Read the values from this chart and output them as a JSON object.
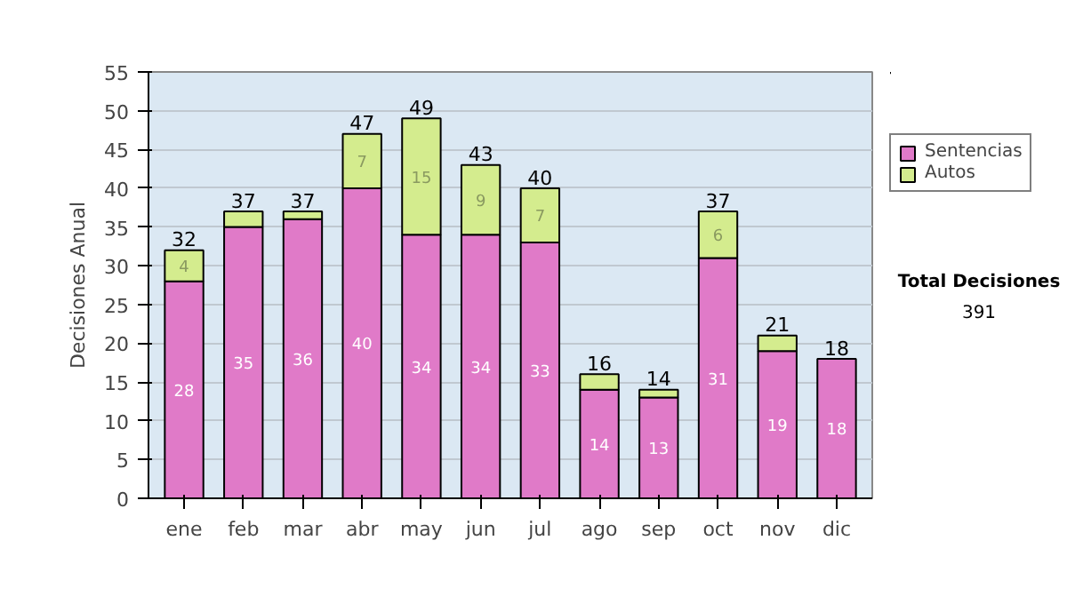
{
  "chart_data": {
    "type": "bar",
    "stacked": true,
    "ylabel": "Decisiones Anual",
    "categories": [
      "ene",
      "feb",
      "mar",
      "abr",
      "may",
      "jun",
      "jul",
      "ago",
      "sep",
      "oct",
      "nov",
      "dic"
    ],
    "series": [
      {
        "name": "Sentencias",
        "color": "#e07ac8",
        "values": [
          28,
          35,
          36,
          40,
          34,
          34,
          33,
          14,
          13,
          31,
          19,
          18
        ],
        "value_labels": [
          "28",
          "35",
          "36",
          "40",
          "34",
          "34",
          "33",
          "14",
          "13",
          "31",
          "19",
          "18"
        ]
      },
      {
        "name": "Autos",
        "color": "#d4ec8e",
        "values": [
          4,
          2,
          1,
          7,
          15,
          9,
          7,
          2,
          1,
          6,
          2,
          0
        ],
        "value_labels": [
          "4",
          null,
          null,
          "7",
          "15",
          "9",
          "7",
          null,
          null,
          "6",
          null,
          null
        ]
      }
    ],
    "totals": [
      "32",
      "37",
      "37",
      "47",
      "49",
      "43",
      "40",
      "16",
      "14",
      "37",
      "21",
      "18"
    ],
    "ylim": [
      0,
      55
    ],
    "yticks": [
      0,
      5,
      10,
      15,
      20,
      25,
      30,
      35,
      40,
      45,
      50,
      55
    ],
    "grid": "y",
    "legend": "right",
    "annotations": [
      "Total Decisiones",
      "391"
    ]
  }
}
